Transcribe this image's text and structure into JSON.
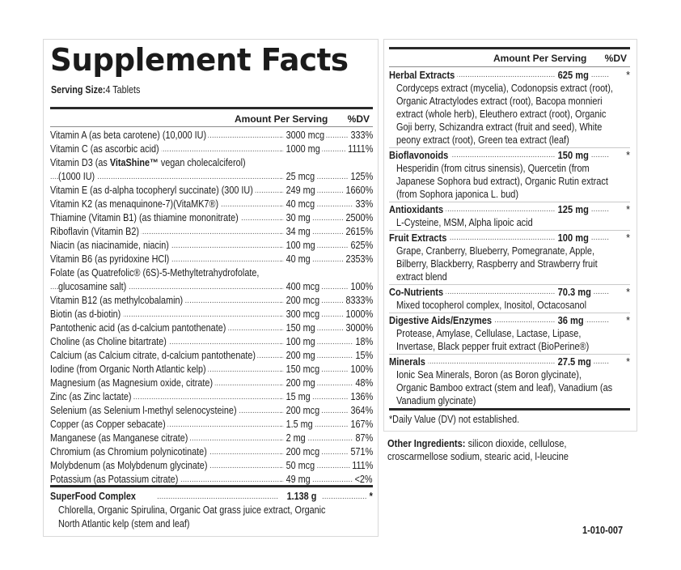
{
  "left_panel": {
    "title": "Supplement Facts",
    "serving_size_label": "Serving Size:",
    "serving_size_value": "4 Tablets",
    "header": {
      "amount": "Amount Per Serving",
      "dv": "%DV"
    },
    "rows": [
      {
        "name": "Vitamin A (as beta carotene) (10,000 IU)",
        "amount": "3000 mcg",
        "dv": "333%"
      },
      {
        "name": "Vitamin C (as ascorbic acid)",
        "amount": "1000 mg",
        "dv": "1111%"
      },
      {
        "name_pre": "Vitamin D3 (as ",
        "name_bold": "VitaShine™",
        "name_post": " vegan cholecalciferol)",
        "cont": "(1000 IU)",
        "amount": "25 mcg",
        "dv": "125%"
      },
      {
        "name": "Vitamin E (as d-alpha tocopheryl succinate) (300 IU)",
        "amount": "249 mg",
        "dv": "1660%"
      },
      {
        "name": "Vitamin K2 (as menaquinone-7)(VitaMK7®)",
        "amount": "40 mcg",
        "dv": "33%"
      },
      {
        "name": "Thiamine (Vitamin B1) (as thiamine mononitrate)",
        "amount": "30 mg",
        "dv": "2500%"
      },
      {
        "name": "Riboflavin (Vitamin B2)",
        "amount": "34 mg",
        "dv": "2615%"
      },
      {
        "name": "Niacin (as niacinamide, niacin)",
        "amount": "100 mg",
        "dv": "625%"
      },
      {
        "name": "Vitamin B6 (as pyridoxine HCl)",
        "amount": "40 mg",
        "dv": "2353%"
      },
      {
        "name": "Folate (as Quatrefolic® (6S)-5-Methyltetrahydrofolate,",
        "cont": "glucosamine salt)",
        "amount": "400 mcg",
        "dv": "100%"
      },
      {
        "name": "Vitamin B12 (as methylcobalamin)",
        "amount": "200 mcg",
        "dv": "8333%"
      },
      {
        "name": "Biotin (as d-biotin)",
        "amount": "300 mcg",
        "dv": "1000%"
      },
      {
        "name": "Pantothenic acid (as d-calcium pantothenate)",
        "amount": "150 mg",
        "dv": "3000%"
      },
      {
        "name": "Choline (as Choline bitartrate)",
        "amount": "100 mg",
        "dv": "18%"
      },
      {
        "name": "Calcium (as Calcium citrate, d-calcium pantothenate)",
        "amount": "200 mg",
        "dv": "15%"
      },
      {
        "name": "Iodine (from Organic North Atlantic kelp)",
        "amount": "150 mcg",
        "dv": "100%"
      },
      {
        "name": "Magnesium (as Magnesium oxide, citrate)",
        "amount": "200 mg",
        "dv": "48%"
      },
      {
        "name": "Zinc (as Zinc lactate)",
        "amount": "15 mg",
        "dv": "136%"
      },
      {
        "name": "Selenium (as Selenium l-methyl selenocysteine)",
        "amount": "200 mcg",
        "dv": "364%"
      },
      {
        "name": "Copper (as Copper sebacate)",
        "amount": "1.5 mg",
        "dv": "167%"
      },
      {
        "name": "Manganese (as Manganese citrate)",
        "amount": "2 mg",
        "dv": "87%"
      },
      {
        "name": "Chromium (as Chromium polynicotinate)",
        "amount": "200 mcg",
        "dv": "571%"
      },
      {
        "name": "Molybdenum (as Molybdenum glycinate)",
        "amount": "50 mcg",
        "dv": "111%"
      },
      {
        "name": "Potassium (as Potassium citrate)",
        "amount": "49 mg",
        "dv": "<2%"
      }
    ],
    "superfood": {
      "name": "SuperFood Complex",
      "amount": "1.138 g",
      "dv": "*",
      "desc_lines": [
        "Chlorella, Organic Spirulina, Organic Oat grass juice extract, Organic",
        "North Atlantic kelp (stem and leaf)"
      ]
    }
  },
  "right_panel": {
    "header": {
      "amount": "Amount Per Serving",
      "dv": "%DV"
    },
    "groups": [
      {
        "name": "Herbal Extracts",
        "amount": "625 mg",
        "dv": "*",
        "desc_lines": [
          "Cordyceps extract (mycelia), Codonopsis extract (root),",
          "Organic Atractylodes extract (root), Bacopa monnieri",
          "extract (whole herb), Eleuthero extract (root), Organic",
          "Goji berry, Schizandra extract (fruit and seed), White",
          "peony extract (root), Green tea extract (leaf)"
        ]
      },
      {
        "name": "Bioflavonoids",
        "amount": "150 mg",
        "dv": "*",
        "desc_lines": [
          "Hesperidin (from citrus sinensis), Quercetin (from",
          "Japanese Sophora bud extract), Organic Rutin extract",
          "(from Sophora japonica L. bud)"
        ]
      },
      {
        "name": "Antioxidants",
        "amount": "125 mg",
        "dv": "*",
        "desc_lines": [
          "L-Cysteine, MSM, Alpha lipoic acid"
        ]
      },
      {
        "name": "Fruit Extracts",
        "amount": "100 mg",
        "dv": "*",
        "desc_lines": [
          "Grape, Cranberry, Blueberry, Pomegranate, Apple,",
          "Bilberry, Blackberry, Raspberry and Strawberry fruit",
          "extract blend"
        ]
      },
      {
        "name": "Co-Nutrients",
        "amount": "70.3 mg",
        "dv": "*",
        "desc_lines": [
          "Mixed tocopherol complex, Inositol, Octacosanol"
        ]
      },
      {
        "name": "Digestive Aids/Enzymes",
        "amount": "36 mg",
        "dv": "*",
        "desc_lines": [
          "Protease, Amylase, Cellulase, Lactase, Lipase,",
          "Invertase, Black pepper fruit extract (BioPerine®)"
        ]
      },
      {
        "name": "Minerals",
        "amount": "27.5 mg",
        "dv": "*",
        "desc_lines": [
          "Ionic Sea Minerals, Boron (as Boron glycinate),",
          "Organic Bamboo extract (stem and leaf), Vanadium (as",
          "Vanadium glycinate)"
        ]
      }
    ],
    "footnote": "*Daily Value (DV) not established."
  },
  "other_ingredients": {
    "label": "Other Ingredients:",
    "line1": " silicon dioxide, cellulose,",
    "line2": "croscarmellose sodium, stearic acid, l-leucine"
  },
  "product_code": "1-010-007"
}
